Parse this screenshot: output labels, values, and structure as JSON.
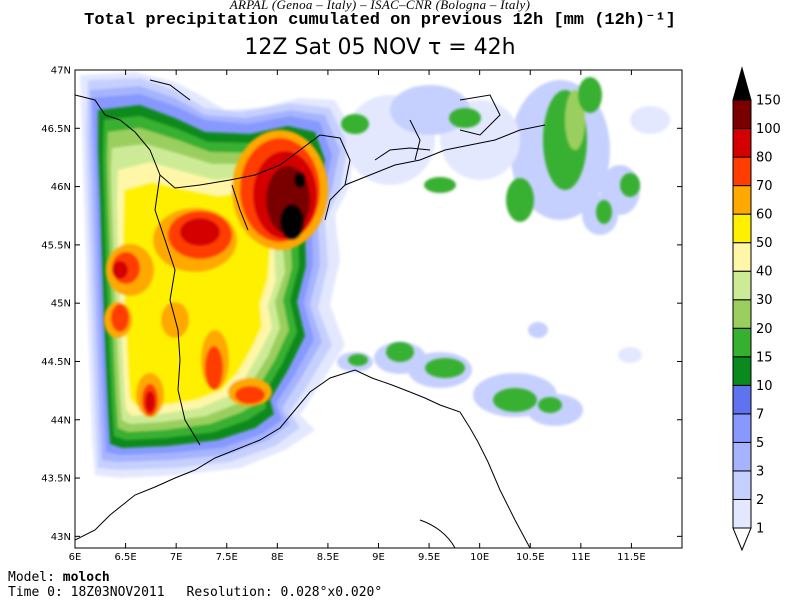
{
  "header": {
    "credit": "ARPAL (Genoa – Italy)   –   ISAC–CNR (Bologna – Italy)",
    "title": "Total precipitation cumulated on previous 12h [mm (12h)⁻¹]",
    "subtitle": "12Z Sat 05 NOV  τ = 42h"
  },
  "map": {
    "lon_range": [
      6,
      12
    ],
    "lat_range": [
      42.9,
      47
    ],
    "lon_ticks": [
      "6E",
      "6.5E",
      "7E",
      "7.5E",
      "8E",
      "8.5E",
      "9E",
      "9.5E",
      "10E",
      "10.5E",
      "11E",
      "11.5E"
    ],
    "lat_ticks": [
      "43N",
      "43.5N",
      "44N",
      "44.5N",
      "45N",
      "45.5N",
      "46N",
      "46.5N",
      "47N"
    ]
  },
  "colorbar": {
    "levels": [
      "1",
      "2",
      "3",
      "5",
      "7",
      "10",
      "15",
      "20",
      "30",
      "40",
      "50",
      "60",
      "70",
      "80",
      "100",
      "150"
    ],
    "colors": [
      "#e3e8ff",
      "#c6d0ff",
      "#a6b4ff",
      "#8799ff",
      "#5f73f0",
      "#0a8a1e",
      "#37b030",
      "#9acf5f",
      "#cdeb96",
      "#fff6a8",
      "#fff000",
      "#ffa800",
      "#ff3d00",
      "#d40000",
      "#7a0000",
      "#000000"
    ]
  },
  "footer": {
    "model_label": "Model:",
    "model_value": "moloch",
    "time_label": "Time 0:",
    "time_value": "18Z03NOV2011",
    "resolution_label": "Resolution:",
    "resolution_value": "0.028°x0.020°"
  }
}
